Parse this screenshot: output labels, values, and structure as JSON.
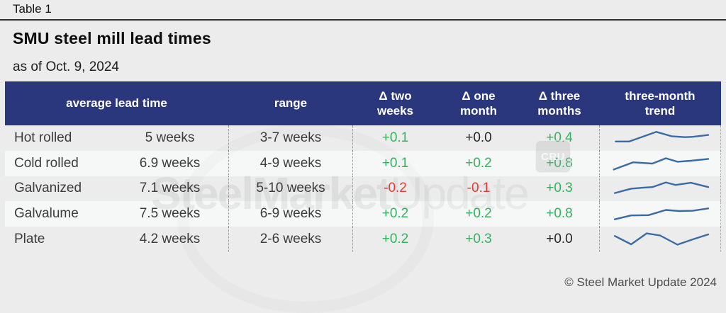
{
  "page": {
    "table_label": "Table 1",
    "title": "SMU steel mill lead times",
    "subtitle": "as of Oct. 9, 2024",
    "footer": "© Steel Market Update 2024"
  },
  "watermark": {
    "bold_text": "SteelMarket",
    "light_text": "Update",
    "badge": "CRU"
  },
  "colors": {
    "header_bg": "#2a377d",
    "header_text": "#ffffff",
    "positive_delta": "#2fb55b",
    "negative_delta": "#ed3b30",
    "neutral_delta": "#262626",
    "sparkline": "#3b6ba5",
    "row_stripe": "#f6f7f7",
    "page_bg": "#ececec"
  },
  "table": {
    "header": {
      "avg_lead_time": "average lead time",
      "range": "range",
      "delta_two_weeks": "Δ two weeks",
      "delta_one_month": "Δ one month",
      "delta_three_months": "Δ three months",
      "trend": "three-month trend"
    }
  },
  "chart_data": {
    "type": "table",
    "title": "SMU steel mill lead times",
    "subtitle": "as of Oct. 9, 2024",
    "columns": [
      "average lead time",
      "range",
      "Δ two weeks",
      "Δ one month",
      "Δ three months",
      "three-month trend"
    ],
    "rows": [
      {
        "product": "Hot rolled",
        "average_lead_time": "5 weeks",
        "range": "3-7 weeks",
        "delta_two_weeks": "+0.1",
        "delta_one_month": "+0.0",
        "delta_three_months": "+0.4",
        "trend_sparkline": [
          [
            4,
            72
          ],
          [
            18,
            72
          ],
          [
            46,
            10
          ],
          [
            62,
            38
          ],
          [
            76,
            44
          ],
          [
            84,
            42
          ],
          [
            100,
            30
          ]
        ]
      },
      {
        "product": "Cold rolled",
        "average_lead_time": "6.9 weeks",
        "range": "4-9 weeks",
        "delta_two_weeks": "+0.1",
        "delta_one_month": "+0.2",
        "delta_three_months": "+0.8",
        "trend_sparkline": [
          [
            2,
            88
          ],
          [
            22,
            42
          ],
          [
            32,
            46
          ],
          [
            42,
            50
          ],
          [
            56,
            16
          ],
          [
            68,
            38
          ],
          [
            82,
            32
          ],
          [
            100,
            20
          ]
        ]
      },
      {
        "product": "Galvanized",
        "average_lead_time": "7.1 weeks",
        "range": "5-10 weeks",
        "delta_two_weeks": "-0.2",
        "delta_one_month": "-0.1",
        "delta_three_months": "+0.3",
        "trend_sparkline": [
          [
            3,
            80
          ],
          [
            20,
            52
          ],
          [
            32,
            46
          ],
          [
            42,
            42
          ],
          [
            56,
            12
          ],
          [
            66,
            28
          ],
          [
            82,
            14
          ],
          [
            100,
            42
          ]
        ]
      },
      {
        "product": "Galvalume",
        "average_lead_time": "7.5 weeks",
        "range": "6-9 weeks",
        "delta_two_weeks": "+0.2",
        "delta_one_month": "+0.2",
        "delta_three_months": "+0.8",
        "trend_sparkline": [
          [
            3,
            85
          ],
          [
            20,
            60
          ],
          [
            38,
            58
          ],
          [
            56,
            25
          ],
          [
            70,
            32
          ],
          [
            84,
            30
          ],
          [
            100,
            15
          ]
        ]
      },
      {
        "product": "Plate",
        "average_lead_time": "4.2 weeks",
        "range": "2-6 weeks",
        "delta_two_weeks": "+0.2",
        "delta_one_month": "+0.3",
        "delta_three_months": "+0.0",
        "trend_sparkline": [
          [
            3,
            28
          ],
          [
            20,
            82
          ],
          [
            36,
            12
          ],
          [
            50,
            25
          ],
          [
            68,
            84
          ],
          [
            84,
            50
          ],
          [
            100,
            18
          ]
        ]
      }
    ]
  }
}
